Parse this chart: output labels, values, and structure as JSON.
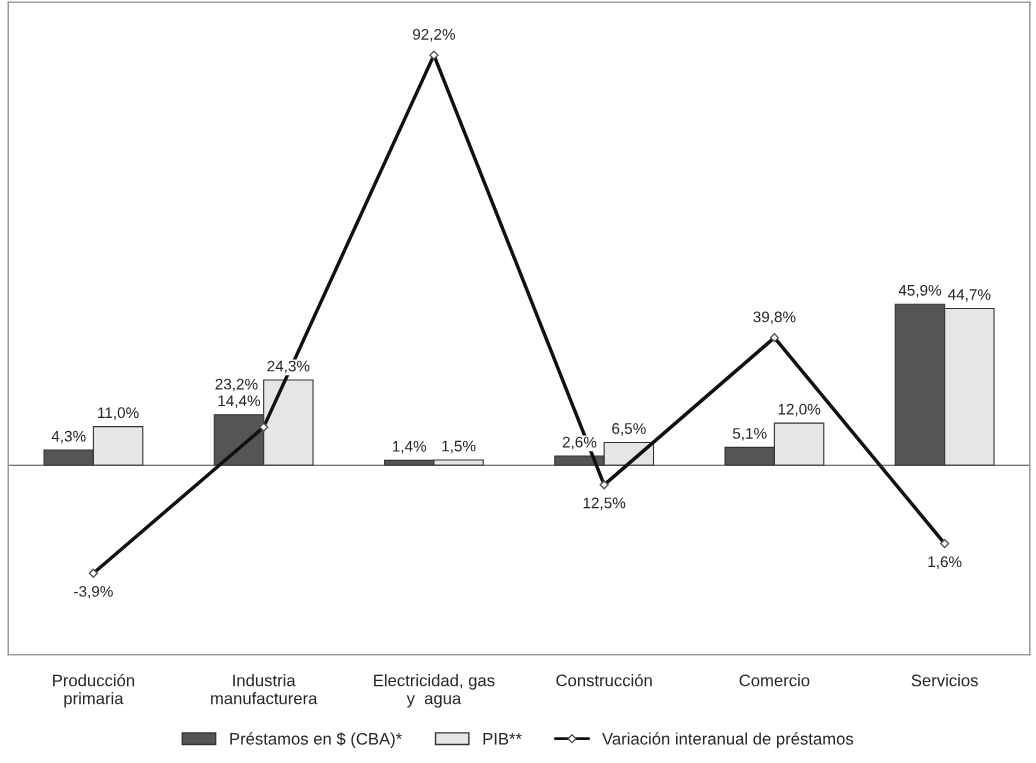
{
  "chart_data": {
    "type": "bar",
    "categories": [
      "Producción\nprimaria",
      "Industria\nmanufacturera",
      "Electricidad, gas\ny  agua",
      "Construcción",
      "Comercio",
      "Servicios"
    ],
    "series": [
      {
        "name": "Préstamos en $ (CBA)*",
        "color": "#555555",
        "values": [
          4.3,
          14.4,
          1.4,
          2.6,
          5.1,
          45.9
        ],
        "value_labels": [
          "4,3%",
          "14,4%",
          "1,4%",
          "2,6%",
          "5,1%",
          "45,9%"
        ]
      },
      {
        "name": "PIB**",
        "color": "#e6e6e6",
        "values": [
          11.0,
          24.3,
          1.5,
          6.5,
          12.0,
          44.7
        ],
        "value_labels": [
          "11,0%",
          "24,3%",
          "1,5%",
          "6,5%",
          "12,0%",
          "44,7%"
        ]
      },
      {
        "name": "Variación interanual de préstamos",
        "type": "line",
        "axis": "y2",
        "color": "#111111",
        "marker": "diamond",
        "values": [
          -3.9,
          23.2,
          92.2,
          12.5,
          39.8,
          1.6
        ],
        "value_labels": [
          "-3,9%",
          "23,2%",
          "92,2%",
          "12,5%",
          "39,8%",
          "1,6%"
        ]
      }
    ],
    "ylim": [
      -54,
      132
    ],
    "y2lim": [
      -19,
      102
    ],
    "tick_labels": "x",
    "grid": false,
    "legend": "bottom"
  }
}
